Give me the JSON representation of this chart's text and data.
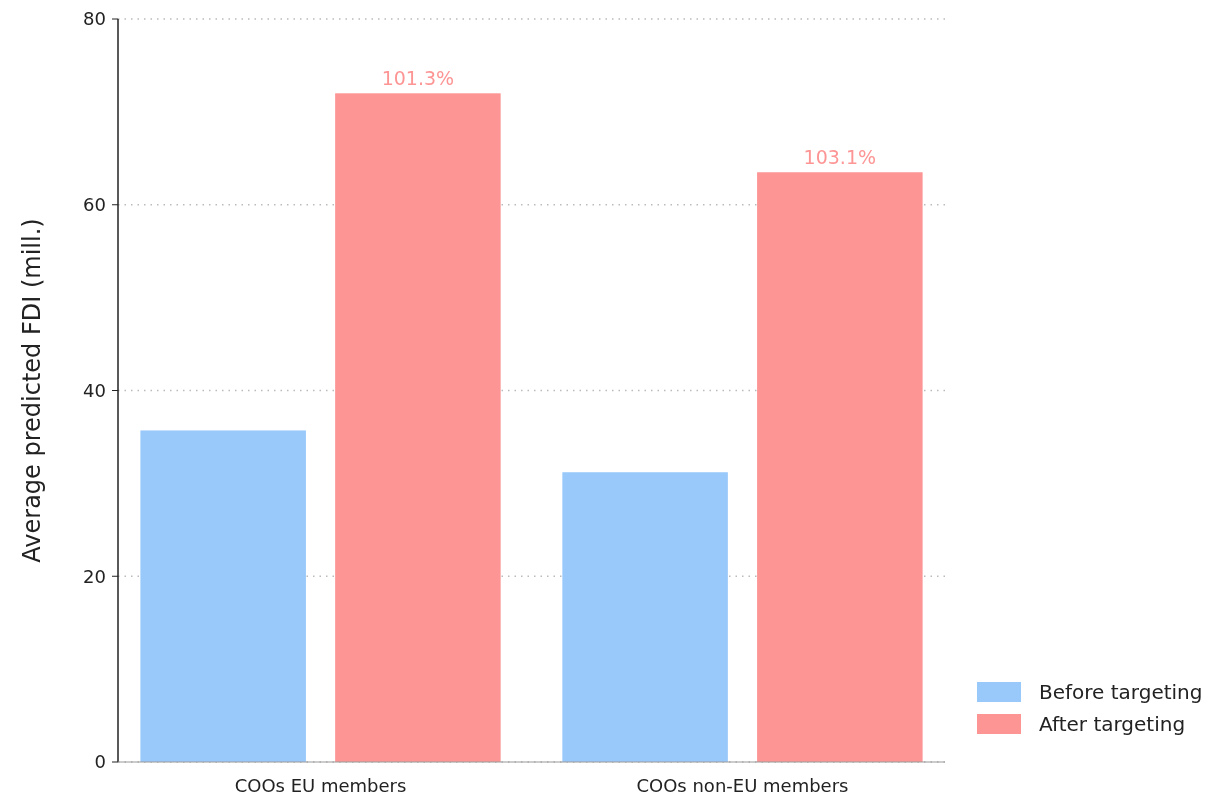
{
  "chart_data": {
    "type": "bar",
    "ylabel": "Average predicted FDI (mill.)",
    "categories": [
      "COOs EU members",
      "COOs non-EU members"
    ],
    "series": [
      {
        "name": "Before targeting",
        "color": "#99c9fb",
        "values": [
          35.7,
          31.2
        ]
      },
      {
        "name": "After targeting",
        "color": "#fd9595",
        "values": [
          72.0,
          63.5
        ]
      }
    ],
    "annotations": [
      "101.3%",
      "103.1%"
    ],
    "ylim": [
      0,
      80
    ],
    "yticks": [
      0,
      20,
      40,
      60,
      80
    ],
    "grid": "y",
    "legend": "bottom right"
  }
}
